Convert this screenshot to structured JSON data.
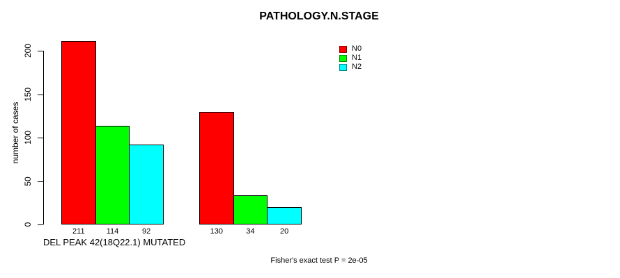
{
  "chart_data": {
    "type": "bar",
    "title": "PATHOLOGY.N.STAGE",
    "ylabel": "number of cases",
    "xlabel": "DEL PEAK 42(18Q22.1) MUTATED",
    "ylim": [
      0,
      200
    ],
    "yticks": [
      0,
      50,
      100,
      150,
      200
    ],
    "n_groups": 2,
    "series": [
      {
        "name": "N0",
        "color": "#ff0000",
        "values": [
          211,
          130
        ]
      },
      {
        "name": "N1",
        "color": "#00ff00",
        "values": [
          114,
          34
        ]
      },
      {
        "name": "N2",
        "color": "#00ffff",
        "values": [
          92,
          20
        ]
      }
    ],
    "bar_value_labels": [
      [
        211,
        114,
        92
      ],
      [
        130,
        34,
        20
      ]
    ],
    "legend_position": "top-right",
    "grid": false,
    "annotation": "Fisher's exact test P = 2e-05"
  }
}
